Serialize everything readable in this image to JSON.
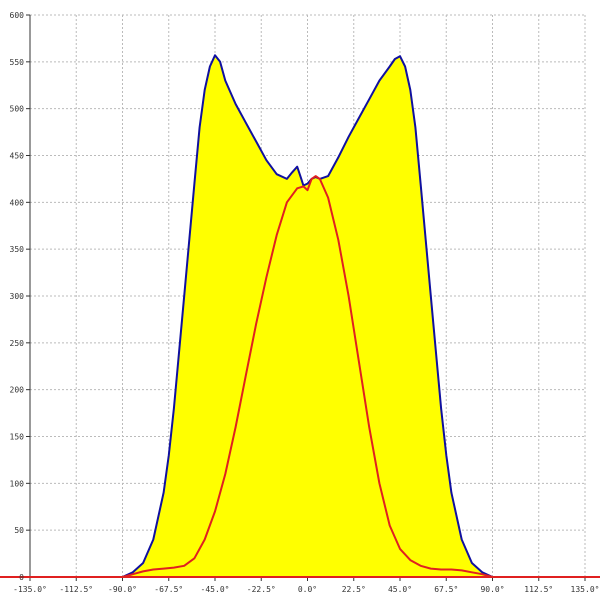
{
  "chart_data": {
    "type": "area",
    "title": "",
    "xlabel": "",
    "ylabel": "",
    "xlim": [
      -135,
      135
    ],
    "ylim": [
      0,
      600
    ],
    "grid": true,
    "x_ticks": [
      -135,
      -112.5,
      -90,
      -67.5,
      -45,
      -22.5,
      0,
      22.5,
      45,
      67.5,
      90,
      112.5,
      135
    ],
    "x_tick_labels": [
      "-135.0°",
      "-112.5°",
      "-90.0°",
      "-67.5°",
      "-45.0°",
      "-22.5°",
      "0.0°",
      "22.5°",
      "45.0°",
      "67.5°",
      "90.0°",
      "112.5°",
      "135.0°"
    ],
    "y_ticks": [
      0,
      50,
      100,
      150,
      200,
      250,
      300,
      350,
      400,
      450,
      500,
      550,
      600
    ],
    "y_tick_labels": [
      "0",
      "50",
      "100",
      "150",
      "200",
      "250",
      "300",
      "350",
      "400",
      "450",
      "500",
      "550",
      "600"
    ],
    "series": [
      {
        "color": "#1010a0",
        "fill": "#ffff00",
        "x": [
          -90,
          -85,
          -80,
          -75,
          -70,
          -67.5,
          -65,
          -60,
          -55,
          -52.5,
          -50,
          -47.5,
          -45,
          -42.5,
          -40,
          -35,
          -30,
          -25,
          -20,
          -15,
          -10,
          -7.5,
          -5,
          -3,
          -2,
          0,
          2,
          4,
          6,
          10,
          15,
          20,
          25,
          30,
          35,
          40,
          42.5,
          45,
          47.5,
          50,
          52.5,
          55,
          60,
          65,
          67.5,
          70,
          75,
          80,
          85,
          90
        ],
        "y": [
          0,
          5,
          15,
          40,
          90,
          130,
          180,
          300,
          420,
          480,
          520,
          545,
          557,
          550,
          530,
          505,
          485,
          465,
          445,
          430,
          425,
          432,
          438,
          425,
          418,
          420,
          425,
          427,
          425,
          428,
          448,
          470,
          490,
          510,
          530,
          545,
          553,
          556,
          545,
          520,
          480,
          420,
          300,
          180,
          130,
          90,
          40,
          15,
          5,
          0
        ]
      },
      {
        "color": "#e02020",
        "fill": "none",
        "x": [
          -135,
          -90,
          -85,
          -80,
          -75,
          -70,
          -65,
          -60,
          -55,
          -50,
          -45,
          -40,
          -35,
          -30,
          -25,
          -20,
          -15,
          -10,
          -5,
          -2,
          0,
          2,
          4,
          6,
          10,
          15,
          20,
          25,
          30,
          35,
          40,
          45,
          50,
          55,
          60,
          65,
          70,
          75,
          80,
          85,
          90,
          135
        ],
        "y": [
          0,
          0,
          3,
          6,
          8,
          9,
          10,
          12,
          20,
          40,
          70,
          110,
          160,
          215,
          270,
          320,
          365,
          400,
          415,
          417,
          413,
          425,
          428,
          425,
          405,
          360,
          300,
          230,
          160,
          100,
          55,
          30,
          18,
          12,
          9,
          8,
          8,
          7,
          5,
          3,
          0,
          0
        ]
      }
    ]
  }
}
